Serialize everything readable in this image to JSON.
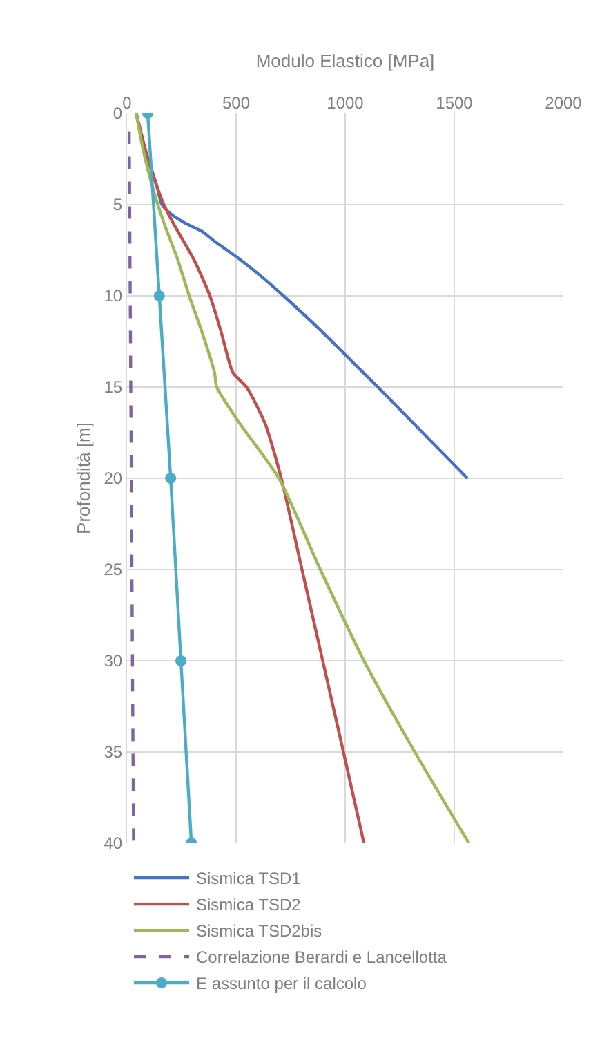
{
  "chart_data": {
    "type": "line",
    "xlabel": "Modulo Elastico [MPa]",
    "ylabel": "Profondità [m]",
    "xlim": [
      0,
      2000
    ],
    "xticks": [
      0,
      500,
      1000,
      1500,
      2000
    ],
    "ylim": [
      40,
      0
    ],
    "yticks": [
      0,
      5,
      10,
      15,
      20,
      25,
      30,
      35,
      40
    ],
    "grid": true,
    "legend": "bottom",
    "series": [
      {
        "name": "Sismica TSD1",
        "color": "#4472c4",
        "x": [
          42,
          84,
          137,
          160,
          200,
          264,
          348,
          400,
          517,
          622,
          717,
          897,
          1065,
          1150,
          1560
        ],
        "values": [
          0,
          2,
          4,
          5,
          5.5,
          6,
          6.5,
          7,
          8,
          9,
          10,
          12,
          14,
          15,
          20
        ]
      },
      {
        "name": "Sismica TSD2",
        "color": "#c0504d",
        "x": [
          42,
          84,
          137,
          169,
          211,
          306,
          380,
          432,
          485,
          548,
          633,
          707,
          802,
          897,
          992,
          1086
        ],
        "values": [
          0,
          2,
          4,
          5,
          6,
          8,
          10,
          12,
          14.2,
          15,
          17,
          20,
          25,
          30,
          35,
          40
        ]
      },
      {
        "name": "Sismica TSD2bis",
        "color": "#9bbb59",
        "x": [
          42,
          74,
          116,
          169,
          232,
          285,
          344,
          401,
          411,
          517,
          696,
          886,
          1086,
          1319,
          1567
        ],
        "values": [
          0,
          2,
          4,
          6,
          8,
          10,
          12,
          14.2,
          15,
          17,
          20,
          25,
          30,
          35,
          40
        ]
      },
      {
        "name": "Correlazione Berardi e Lancellotta",
        "color": "#8064a2",
        "line_style": "dashed",
        "x": [
          10,
          30
        ],
        "values": [
          1,
          40
        ]
      },
      {
        "name": "E assunto per il calcolo",
        "color": "#4bacc6",
        "marker": "circle",
        "x": [
          95,
          148,
          200,
          247,
          295
        ],
        "values": [
          0,
          10,
          20,
          30,
          40
        ]
      }
    ]
  }
}
